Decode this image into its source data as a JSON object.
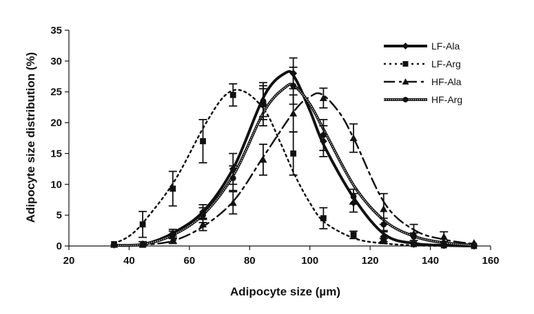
{
  "chart_data": {
    "type": "line",
    "title": "",
    "xlabel": "Adipocyte size (µm)",
    "ylabel": "Adipocyte size distribution (%)",
    "xlim": [
      20,
      160
    ],
    "ylim": [
      0,
      35
    ],
    "xticks": [
      20,
      40,
      60,
      80,
      100,
      120,
      140,
      160
    ],
    "yticks": [
      0,
      5,
      10,
      15,
      20,
      25,
      30,
      35
    ],
    "legend_position": "top-right",
    "grid": false,
    "series": [
      {
        "name": "LF-Ala",
        "marker": "diamond",
        "dash": "solid",
        "x": [
          35,
          44.5,
          54.5,
          64.5,
          74.5,
          84.5,
          94.5,
          104.5,
          114.5,
          124.5,
          134.5,
          144.5,
          154.5
        ],
        "y": [
          0.2,
          0.3,
          2.0,
          5.5,
          12.5,
          23.0,
          28.0,
          17.0,
          7.0,
          1.5,
          0.3,
          0.1,
          0.0
        ],
        "err": [
          0.3,
          0.4,
          0.7,
          1.2,
          2.5,
          3.5,
          2.5,
          2.5,
          1.5,
          0.8,
          0.3,
          0.2,
          0.1
        ],
        "curve_x": [
          35,
          45,
          55,
          65,
          75,
          85,
          92,
          95,
          100,
          105,
          115,
          125,
          135,
          145,
          155
        ],
        "curve_y": [
          0.1,
          0.3,
          2.2,
          5.8,
          13.0,
          24.5,
          28.1,
          27.3,
          22.0,
          16.0,
          7.5,
          1.8,
          0.4,
          0.1,
          0.0
        ]
      },
      {
        "name": "LF-Arg",
        "marker": "square",
        "dash": "dotted",
        "x": [
          35,
          44.5,
          54.5,
          64.5,
          74.5,
          84.5,
          94.5,
          104.5,
          114.5,
          124.5,
          134.5,
          144.5,
          154.5
        ],
        "y": [
          0.3,
          3.5,
          9.3,
          17.0,
          24.5,
          23.0,
          15.0,
          4.5,
          1.8,
          0.8,
          0.3,
          0.1,
          0.0
        ],
        "err": [
          0.3,
          2.1,
          2.8,
          3.5,
          1.8,
          2.5,
          3.5,
          1.7,
          0.6,
          0.4,
          0.2,
          0.1,
          0.1
        ],
        "curve_x": [
          35,
          40,
          45,
          55,
          65,
          72,
          78,
          85,
          90,
          95,
          100,
          105,
          115,
          125,
          135,
          145,
          155
        ],
        "curve_y": [
          0.4,
          1.6,
          4.0,
          10.5,
          19.5,
          24.5,
          25.1,
          22.0,
          17.0,
          11.5,
          7.0,
          3.8,
          1.2,
          0.4,
          0.1,
          0.0,
          0.0
        ]
      },
      {
        "name": "HF-Ala",
        "marker": "triangle",
        "dash": "dashdot",
        "x": [
          35,
          44.5,
          54.5,
          64.5,
          74.5,
          84.5,
          94.5,
          104.5,
          114.5,
          124.5,
          134.5,
          144.5,
          154.5
        ],
        "y": [
          0.2,
          0.2,
          1.0,
          3.5,
          7.0,
          14.0,
          21.5,
          24.0,
          17.5,
          6.0,
          2.0,
          1.5,
          0.5
        ],
        "err": [
          0.3,
          0.3,
          0.6,
          1.0,
          1.8,
          2.5,
          3.0,
          1.6,
          2.3,
          2.5,
          1.5,
          0.8,
          0.3
        ],
        "curve_x": [
          35,
          45,
          55,
          65,
          75,
          85,
          95,
          100,
          104,
          110,
          115,
          125,
          135,
          145,
          155
        ],
        "curve_y": [
          0.1,
          0.2,
          0.9,
          3.3,
          7.5,
          14.8,
          22.0,
          24.2,
          24.6,
          21.5,
          17.0,
          6.8,
          2.5,
          1.0,
          0.3
        ]
      },
      {
        "name": "HF-Arg",
        "marker": "circle",
        "dash": "solid-double",
        "x": [
          35,
          44.5,
          54.5,
          64.5,
          74.5,
          84.5,
          94.5,
          104.5,
          114.5,
          124.5,
          134.5,
          144.5,
          154.5
        ],
        "y": [
          0.2,
          0.3,
          1.8,
          5.0,
          11.0,
          23.5,
          26.0,
          18.0,
          8.0,
          3.5,
          1.5,
          0.5,
          0.2
        ],
        "err": [
          0.3,
          0.3,
          0.6,
          1.2,
          2.0,
          2.5,
          3.0,
          2.5,
          1.2,
          1.0,
          0.6,
          0.3,
          0.2
        ],
        "curve_x": [
          35,
          45,
          55,
          65,
          75,
          85,
          92,
          95,
          100,
          105,
          115,
          125,
          135,
          145,
          155
        ],
        "curve_y": [
          0.1,
          0.3,
          1.9,
          5.3,
          11.8,
          22.0,
          25.8,
          25.9,
          23.0,
          18.5,
          9.5,
          4.0,
          1.5,
          0.5,
          0.1
        ]
      }
    ]
  }
}
